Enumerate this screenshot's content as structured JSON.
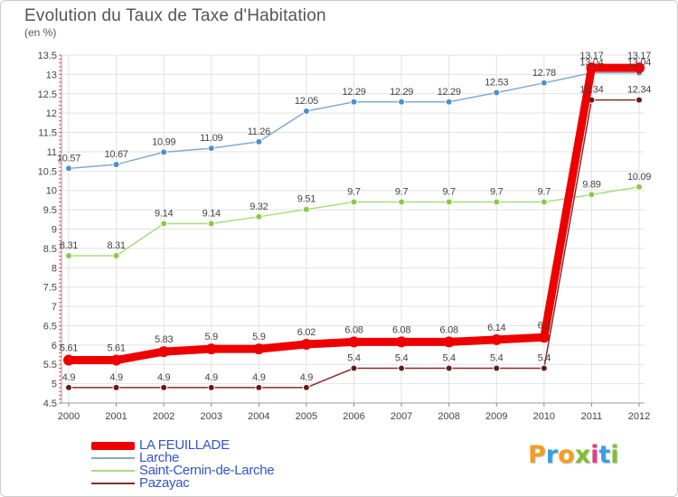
{
  "logo": {
    "letters": [
      "P",
      "r",
      "o",
      "x",
      "i",
      "t",
      "i"
    ],
    "colors": [
      "#f0a020",
      "#3aa0e0",
      "#f0a020",
      "#80c030",
      "#e04080",
      "#3aa0e0",
      "#80c030"
    ]
  },
  "chart_data": {
    "type": "line",
    "title": "Evolution du Taux de Taxe d'Habitation",
    "subtitle": "(en %)",
    "xlabel": "",
    "ylabel": "",
    "x": [
      "2000",
      "2001",
      "2002",
      "2003",
      "2004",
      "2005",
      "2006",
      "2007",
      "2008",
      "2009",
      "2010",
      "2011",
      "2012"
    ],
    "ylim": [
      4.5,
      13.5
    ],
    "ytick_step": 0.5,
    "yticks": [
      "4.5",
      "5",
      "5.5",
      "6",
      "6.5",
      "7",
      "7.5",
      "8",
      "8.5",
      "9",
      "9.5",
      "10",
      "10.5",
      "11",
      "11.5",
      "12",
      "12.5",
      "13",
      "13.5"
    ],
    "grid": true,
    "legend_position": "bottom-left",
    "series": [
      {
        "name": "Larche",
        "color": "#80aad0",
        "marker": "#4a90d0",
        "values": [
          10.57,
          10.67,
          10.99,
          11.09,
          11.26,
          12.05,
          12.29,
          12.29,
          12.29,
          12.53,
          12.78,
          13.04,
          13.04
        ],
        "labels": [
          "10.57",
          "10.67",
          "10.99",
          "11.09",
          "11.26",
          "12.05",
          "12.29",
          "12.29",
          "12.29",
          "12.53",
          "12.78",
          "13.04",
          "13.04"
        ]
      },
      {
        "name": "Saint-Cernin-de-Larche",
        "color": "#a8dc80",
        "marker": "#88cc44",
        "values": [
          8.31,
          8.31,
          9.14,
          9.14,
          9.32,
          9.51,
          9.7,
          9.7,
          9.7,
          9.7,
          9.7,
          9.89,
          10.09
        ],
        "labels": [
          "8.31",
          "8.31",
          "9.14",
          "9.14",
          "9.32",
          "9.51",
          "9.7",
          "9.7",
          "9.7",
          "9.7",
          "9.7",
          "9.89",
          "10.09"
        ]
      },
      {
        "name": "Pazayac",
        "color": "#8a2a2a",
        "marker": "#6a1818",
        "values": [
          4.9,
          4.9,
          4.9,
          4.9,
          4.9,
          4.9,
          5.4,
          5.4,
          5.4,
          5.4,
          5.4,
          12.34,
          12.34
        ],
        "labels": [
          "4.9",
          "4.9",
          "4.9",
          "4.9",
          "4.9",
          "4.9",
          "5.4",
          "5.4",
          "5.4",
          "5.4",
          "5.4",
          "12.34",
          "12.34"
        ]
      },
      {
        "name": "LA FEUILLADE",
        "color": "#ee0000",
        "marker": "#ee0000",
        "values": [
          5.61,
          5.61,
          5.83,
          5.9,
          5.9,
          6.02,
          6.08,
          6.08,
          6.08,
          6.14,
          6.2,
          13.17,
          13.17
        ],
        "labels": [
          "5.61",
          "5.61",
          "5.83",
          "5.9",
          "5.9",
          "6.02",
          "6.08",
          "6.08",
          "6.08",
          "6.14",
          "6.2",
          "13.17",
          "13.17"
        ]
      }
    ],
    "legend_order": [
      "LA FEUILLADE",
      "Larche",
      "Saint-Cernin-de-Larche",
      "Pazayac"
    ]
  }
}
